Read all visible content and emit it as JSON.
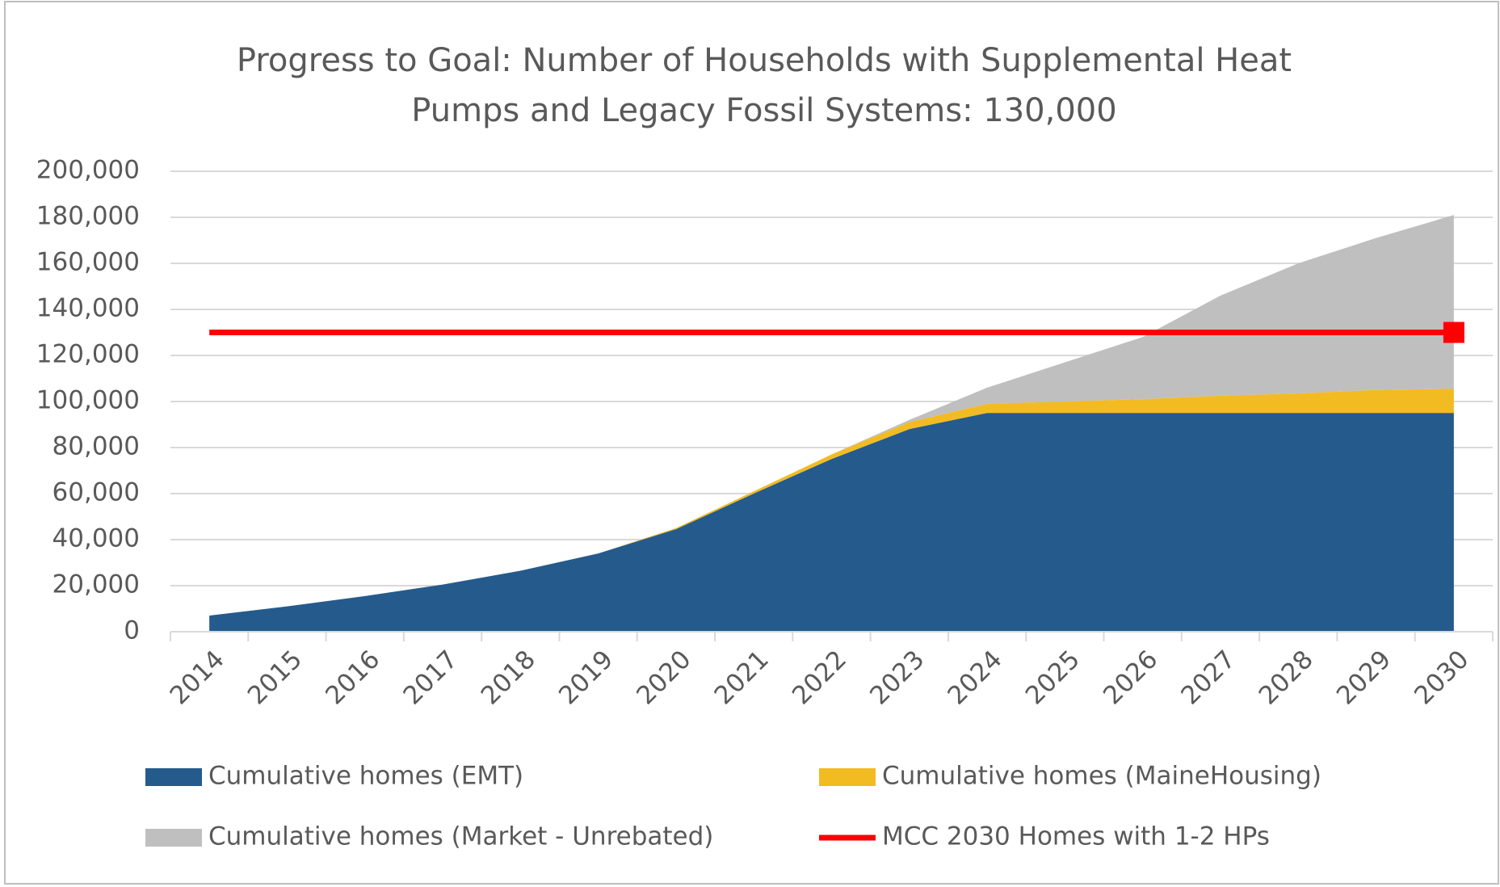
{
  "chart_data": {
    "type": "stacked_area",
    "title": "Progress to Goal: Number of Households with Supplemental Heat Pumps and Legacy Fossil Systems: 130,000",
    "categories": [
      "2014",
      "2015",
      "2016",
      "2017",
      "2018",
      "2019",
      "2020",
      "2021",
      "2022",
      "2023",
      "2024",
      "2025",
      "2026",
      "2027",
      "2028",
      "2029",
      "2030"
    ],
    "series": [
      {
        "name": "Cumulative homes (EMT)",
        "color": "#255a8c",
        "values": [
          7000,
          11000,
          15500,
          20500,
          26500,
          34000,
          44500,
          60000,
          75000,
          88000,
          95000,
          95000,
          95000,
          95000,
          95000,
          95000,
          95000
        ]
      },
      {
        "name": "Cumulative homes (MaineHousing)",
        "color": "#f2bb22",
        "values": [
          0,
          0,
          0,
          0,
          0,
          0,
          500,
          1000,
          2000,
          3000,
          4000,
          5000,
          6000,
          7500,
          8500,
          10000,
          10500
        ]
      },
      {
        "name": "Cumulative homes (Market - Unrebated)",
        "color": "#bfbfbf",
        "values": [
          0,
          0,
          0,
          0,
          0,
          0,
          0,
          0,
          0,
          1000,
          7000,
          17000,
          27000,
          43500,
          56500,
          66000,
          75500
        ]
      },
      {
        "name": "MCC 2030 Homes with 1-2 HPs",
        "color": "#ff0000",
        "kind": "line",
        "values": [
          130000,
          130000,
          130000,
          130000,
          130000,
          130000,
          130000,
          130000,
          130000,
          130000,
          130000,
          130000,
          130000,
          130000,
          130000,
          130000,
          130000
        ]
      }
    ],
    "ylim": [
      0,
      200000
    ],
    "yticks": [
      0,
      {
        "value": 20000,
        "label": "20,000"
      },
      {
        "value": 40000,
        "label": "40,000"
      },
      {
        "value": 60000,
        "label": "60,000"
      },
      {
        "value": 80000,
        "label": "80,000"
      },
      {
        "value": 100000,
        "label": "100,000"
      },
      {
        "value": 120000,
        "label": "120,000"
      },
      {
        "value": 140000,
        "label": "140,000"
      },
      {
        "value": 160000,
        "label": "160,000"
      },
      {
        "value": 180000,
        "label": "180,000"
      },
      {
        "value": 200000,
        "label": "200,000"
      }
    ],
    "grid": true,
    "legend": "bottom"
  }
}
